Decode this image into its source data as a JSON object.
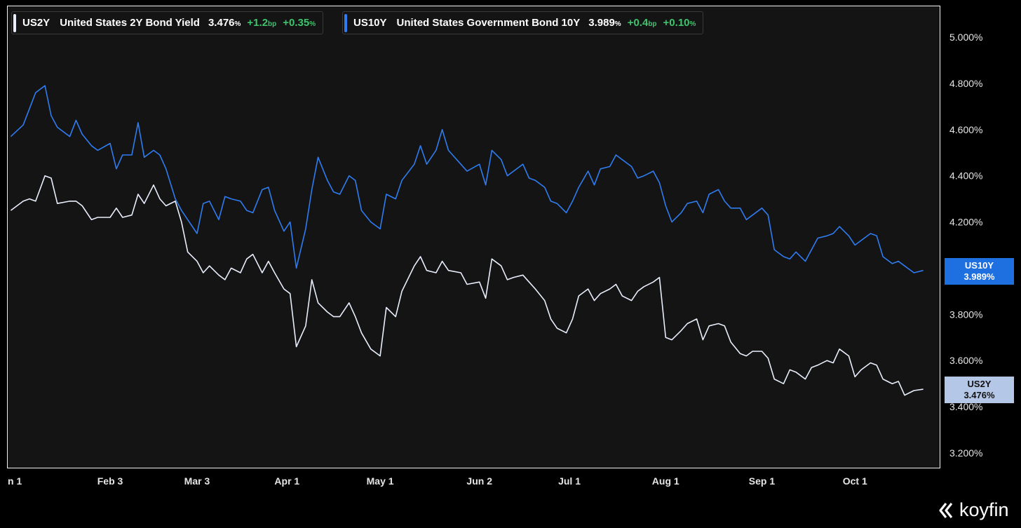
{
  "legend": {
    "us2y": {
      "symbol": "US2Y",
      "name": "United States 2Y Bond Yield",
      "value": "3.476",
      "unit": "%",
      "change_bp": "+1.2",
      "bp_unit": "bp",
      "change_pct": "+0.35",
      "pct_unit": "%"
    },
    "us10y": {
      "symbol": "US10Y",
      "name": "United States Government Bond 10Y",
      "value": "3.989",
      "unit": "%",
      "change_bp": "+0.4",
      "bp_unit": "bp",
      "change_pct": "+0.10",
      "pct_unit": "%"
    }
  },
  "tags": {
    "us10y": {
      "symbol": "US10Y",
      "value": "3.989%"
    },
    "us2y": {
      "symbol": "US2Y",
      "value": "3.476%"
    }
  },
  "brand": "koyfin",
  "colors": {
    "us10y": "#2f7cf0",
    "us2y": "#e8eefc",
    "positive": "#3ec46d",
    "background": "#141414",
    "us10y_tag": "#1e6fe0",
    "us2y_tag": "#b5c7e6"
  },
  "chart_data": {
    "type": "line",
    "ylim": [
      3.1,
      5.1
    ],
    "y_ticks": [
      "5.000%",
      "4.800%",
      "4.600%",
      "4.400%",
      "4.200%",
      "3.800%",
      "3.600%",
      "3.400%",
      "3.200%"
    ],
    "y_tick_values": [
      5.0,
      4.8,
      4.6,
      4.4,
      4.2,
      3.8,
      3.6,
      3.4,
      3.2
    ],
    "x_ticks": [
      "n 1",
      "Feb 3",
      "Mar 3",
      "Apr 1",
      "May 1",
      "Jun 2",
      "Jul 1",
      "Aug 1",
      "Sep 1",
      "Oct 1"
    ],
    "x_tick_dates": [
      "2025-01-01",
      "2025-02-03",
      "2025-03-03",
      "2025-04-01",
      "2025-05-01",
      "2025-06-02",
      "2025-07-01",
      "2025-08-01",
      "2025-09-01",
      "2025-10-01"
    ],
    "x_range": [
      "2025-01-01",
      "2025-10-31"
    ],
    "grid": false,
    "series": [
      {
        "name": "US10Y",
        "color": "#2f7cf0",
        "points": [
          [
            "2025-01-02",
            4.57
          ],
          [
            "2025-01-06",
            4.62
          ],
          [
            "2025-01-08",
            4.69
          ],
          [
            "2025-01-10",
            4.76
          ],
          [
            "2025-01-13",
            4.79
          ],
          [
            "2025-01-15",
            4.66
          ],
          [
            "2025-01-17",
            4.61
          ],
          [
            "2025-01-21",
            4.57
          ],
          [
            "2025-01-23",
            4.64
          ],
          [
            "2025-01-25",
            4.58
          ],
          [
            "2025-01-28",
            4.53
          ],
          [
            "2025-01-30",
            4.51
          ],
          [
            "2025-02-03",
            4.54
          ],
          [
            "2025-02-05",
            4.43
          ],
          [
            "2025-02-07",
            4.49
          ],
          [
            "2025-02-10",
            4.49
          ],
          [
            "2025-02-12",
            4.63
          ],
          [
            "2025-02-14",
            4.48
          ],
          [
            "2025-02-17",
            4.51
          ],
          [
            "2025-02-19",
            4.49
          ],
          [
            "2025-02-21",
            4.43
          ],
          [
            "2025-02-24",
            4.3
          ],
          [
            "2025-02-26",
            4.25
          ],
          [
            "2025-02-28",
            4.21
          ],
          [
            "2025-03-03",
            4.15
          ],
          [
            "2025-03-05",
            4.28
          ],
          [
            "2025-03-07",
            4.29
          ],
          [
            "2025-03-10",
            4.21
          ],
          [
            "2025-03-12",
            4.31
          ],
          [
            "2025-03-14",
            4.3
          ],
          [
            "2025-03-17",
            4.29
          ],
          [
            "2025-03-19",
            4.25
          ],
          [
            "2025-03-21",
            4.24
          ],
          [
            "2025-03-24",
            4.34
          ],
          [
            "2025-03-26",
            4.35
          ],
          [
            "2025-03-28",
            4.25
          ],
          [
            "2025-03-31",
            4.16
          ],
          [
            "2025-04-02",
            4.2
          ],
          [
            "2025-04-04",
            4.0
          ],
          [
            "2025-04-07",
            4.17
          ],
          [
            "2025-04-09",
            4.34
          ],
          [
            "2025-04-11",
            4.48
          ],
          [
            "2025-04-14",
            4.38
          ],
          [
            "2025-04-16",
            4.33
          ],
          [
            "2025-04-18",
            4.32
          ],
          [
            "2025-04-21",
            4.4
          ],
          [
            "2025-04-23",
            4.38
          ],
          [
            "2025-04-25",
            4.25
          ],
          [
            "2025-04-28",
            4.2
          ],
          [
            "2025-05-01",
            4.17
          ],
          [
            "2025-05-03",
            4.32
          ],
          [
            "2025-05-06",
            4.3
          ],
          [
            "2025-05-08",
            4.38
          ],
          [
            "2025-05-12",
            4.45
          ],
          [
            "2025-05-14",
            4.53
          ],
          [
            "2025-05-16",
            4.45
          ],
          [
            "2025-05-19",
            4.51
          ],
          [
            "2025-05-21",
            4.6
          ],
          [
            "2025-05-23",
            4.51
          ],
          [
            "2025-05-27",
            4.45
          ],
          [
            "2025-05-29",
            4.42
          ],
          [
            "2025-06-02",
            4.45
          ],
          [
            "2025-06-04",
            4.36
          ],
          [
            "2025-06-06",
            4.51
          ],
          [
            "2025-06-09",
            4.47
          ],
          [
            "2025-06-11",
            4.4
          ],
          [
            "2025-06-13",
            4.42
          ],
          [
            "2025-06-16",
            4.45
          ],
          [
            "2025-06-18",
            4.39
          ],
          [
            "2025-06-20",
            4.38
          ],
          [
            "2025-06-23",
            4.35
          ],
          [
            "2025-06-25",
            4.29
          ],
          [
            "2025-06-27",
            4.28
          ],
          [
            "2025-06-30",
            4.24
          ],
          [
            "2025-07-02",
            4.29
          ],
          [
            "2025-07-04",
            4.35
          ],
          [
            "2025-07-07",
            4.42
          ],
          [
            "2025-07-09",
            4.36
          ],
          [
            "2025-07-11",
            4.43
          ],
          [
            "2025-07-14",
            4.44
          ],
          [
            "2025-07-16",
            4.49
          ],
          [
            "2025-07-18",
            4.47
          ],
          [
            "2025-07-21",
            4.44
          ],
          [
            "2025-07-23",
            4.39
          ],
          [
            "2025-07-25",
            4.4
          ],
          [
            "2025-07-28",
            4.42
          ],
          [
            "2025-07-30",
            4.37
          ],
          [
            "2025-08-01",
            4.27
          ],
          [
            "2025-08-03",
            4.2
          ],
          [
            "2025-08-06",
            4.24
          ],
          [
            "2025-08-08",
            4.28
          ],
          [
            "2025-08-11",
            4.29
          ],
          [
            "2025-08-13",
            4.24
          ],
          [
            "2025-08-15",
            4.32
          ],
          [
            "2025-08-18",
            4.34
          ],
          [
            "2025-08-20",
            4.29
          ],
          [
            "2025-08-22",
            4.26
          ],
          [
            "2025-08-25",
            4.26
          ],
          [
            "2025-08-27",
            4.21
          ],
          [
            "2025-08-29",
            4.23
          ],
          [
            "2025-09-01",
            4.26
          ],
          [
            "2025-09-03",
            4.23
          ],
          [
            "2025-09-05",
            4.08
          ],
          [
            "2025-09-08",
            4.05
          ],
          [
            "2025-09-10",
            4.04
          ],
          [
            "2025-09-12",
            4.07
          ],
          [
            "2025-09-15",
            4.03
          ],
          [
            "2025-09-17",
            4.08
          ],
          [
            "2025-09-19",
            4.13
          ],
          [
            "2025-09-22",
            4.14
          ],
          [
            "2025-09-24",
            4.15
          ],
          [
            "2025-09-26",
            4.18
          ],
          [
            "2025-09-29",
            4.14
          ],
          [
            "2025-10-01",
            4.1
          ],
          [
            "2025-10-03",
            4.12
          ],
          [
            "2025-10-06",
            4.15
          ],
          [
            "2025-10-08",
            4.14
          ],
          [
            "2025-10-10",
            4.05
          ],
          [
            "2025-10-13",
            4.02
          ],
          [
            "2025-10-15",
            4.03
          ],
          [
            "2025-10-17",
            4.01
          ],
          [
            "2025-10-20",
            3.98
          ],
          [
            "2025-10-23",
            3.99
          ]
        ]
      },
      {
        "name": "US2Y",
        "color": "#e8eefc",
        "points": [
          [
            "2025-01-02",
            4.25
          ],
          [
            "2025-01-06",
            4.29
          ],
          [
            "2025-01-08",
            4.3
          ],
          [
            "2025-01-10",
            4.29
          ],
          [
            "2025-01-13",
            4.4
          ],
          [
            "2025-01-15",
            4.39
          ],
          [
            "2025-01-17",
            4.28
          ],
          [
            "2025-01-21",
            4.29
          ],
          [
            "2025-01-23",
            4.29
          ],
          [
            "2025-01-25",
            4.27
          ],
          [
            "2025-01-28",
            4.21
          ],
          [
            "2025-01-30",
            4.22
          ],
          [
            "2025-02-03",
            4.22
          ],
          [
            "2025-02-05",
            4.26
          ],
          [
            "2025-02-07",
            4.22
          ],
          [
            "2025-02-10",
            4.23
          ],
          [
            "2025-02-12",
            4.32
          ],
          [
            "2025-02-14",
            4.28
          ],
          [
            "2025-02-17",
            4.36
          ],
          [
            "2025-02-19",
            4.3
          ],
          [
            "2025-02-21",
            4.27
          ],
          [
            "2025-02-24",
            4.29
          ],
          [
            "2025-02-26",
            4.2
          ],
          [
            "2025-02-28",
            4.07
          ],
          [
            "2025-03-03",
            4.03
          ],
          [
            "2025-03-05",
            3.98
          ],
          [
            "2025-03-07",
            4.01
          ],
          [
            "2025-03-10",
            3.97
          ],
          [
            "2025-03-12",
            3.95
          ],
          [
            "2025-03-14",
            4.0
          ],
          [
            "2025-03-17",
            3.98
          ],
          [
            "2025-03-19",
            4.04
          ],
          [
            "2025-03-21",
            4.06
          ],
          [
            "2025-03-24",
            3.98
          ],
          [
            "2025-03-26",
            4.03
          ],
          [
            "2025-03-28",
            3.98
          ],
          [
            "2025-03-31",
            3.91
          ],
          [
            "2025-04-02",
            3.89
          ],
          [
            "2025-04-04",
            3.66
          ],
          [
            "2025-04-07",
            3.75
          ],
          [
            "2025-04-09",
            3.95
          ],
          [
            "2025-04-11",
            3.85
          ],
          [
            "2025-04-14",
            3.81
          ],
          [
            "2025-04-16",
            3.79
          ],
          [
            "2025-04-18",
            3.79
          ],
          [
            "2025-04-21",
            3.85
          ],
          [
            "2025-04-23",
            3.79
          ],
          [
            "2025-04-25",
            3.72
          ],
          [
            "2025-04-28",
            3.65
          ],
          [
            "2025-05-01",
            3.62
          ],
          [
            "2025-05-03",
            3.83
          ],
          [
            "2025-05-06",
            3.79
          ],
          [
            "2025-05-08",
            3.9
          ],
          [
            "2025-05-12",
            4.01
          ],
          [
            "2025-05-14",
            4.05
          ],
          [
            "2025-05-16",
            3.99
          ],
          [
            "2025-05-19",
            3.98
          ],
          [
            "2025-05-21",
            4.03
          ],
          [
            "2025-05-23",
            3.99
          ],
          [
            "2025-05-27",
            3.98
          ],
          [
            "2025-05-29",
            3.93
          ],
          [
            "2025-06-02",
            3.94
          ],
          [
            "2025-06-04",
            3.87
          ],
          [
            "2025-06-06",
            4.04
          ],
          [
            "2025-06-09",
            4.01
          ],
          [
            "2025-06-11",
            3.95
          ],
          [
            "2025-06-13",
            3.96
          ],
          [
            "2025-06-16",
            3.97
          ],
          [
            "2025-06-18",
            3.94
          ],
          [
            "2025-06-20",
            3.91
          ],
          [
            "2025-06-23",
            3.86
          ],
          [
            "2025-06-25",
            3.78
          ],
          [
            "2025-06-27",
            3.74
          ],
          [
            "2025-06-30",
            3.72
          ],
          [
            "2025-07-02",
            3.78
          ],
          [
            "2025-07-04",
            3.88
          ],
          [
            "2025-07-07",
            3.91
          ],
          [
            "2025-07-09",
            3.86
          ],
          [
            "2025-07-11",
            3.89
          ],
          [
            "2025-07-14",
            3.91
          ],
          [
            "2025-07-16",
            3.93
          ],
          [
            "2025-07-18",
            3.88
          ],
          [
            "2025-07-21",
            3.86
          ],
          [
            "2025-07-23",
            3.9
          ],
          [
            "2025-07-25",
            3.92
          ],
          [
            "2025-07-28",
            3.94
          ],
          [
            "2025-07-30",
            3.96
          ],
          [
            "2025-08-01",
            3.7
          ],
          [
            "2025-08-03",
            3.69
          ],
          [
            "2025-08-06",
            3.73
          ],
          [
            "2025-08-08",
            3.76
          ],
          [
            "2025-08-11",
            3.78
          ],
          [
            "2025-08-13",
            3.69
          ],
          [
            "2025-08-15",
            3.75
          ],
          [
            "2025-08-18",
            3.76
          ],
          [
            "2025-08-20",
            3.75
          ],
          [
            "2025-08-22",
            3.68
          ],
          [
            "2025-08-25",
            3.63
          ],
          [
            "2025-08-27",
            3.62
          ],
          [
            "2025-08-29",
            3.64
          ],
          [
            "2025-09-01",
            3.64
          ],
          [
            "2025-09-03",
            3.61
          ],
          [
            "2025-09-05",
            3.52
          ],
          [
            "2025-09-08",
            3.5
          ],
          [
            "2025-09-10",
            3.56
          ],
          [
            "2025-09-12",
            3.55
          ],
          [
            "2025-09-15",
            3.52
          ],
          [
            "2025-09-17",
            3.57
          ],
          [
            "2025-09-19",
            3.58
          ],
          [
            "2025-09-22",
            3.6
          ],
          [
            "2025-09-24",
            3.59
          ],
          [
            "2025-09-26",
            3.65
          ],
          [
            "2025-09-29",
            3.62
          ],
          [
            "2025-10-01",
            3.53
          ],
          [
            "2025-10-03",
            3.56
          ],
          [
            "2025-10-06",
            3.59
          ],
          [
            "2025-10-08",
            3.58
          ],
          [
            "2025-10-10",
            3.52
          ],
          [
            "2025-10-13",
            3.5
          ],
          [
            "2025-10-15",
            3.51
          ],
          [
            "2025-10-17",
            3.45
          ],
          [
            "2025-10-20",
            3.47
          ],
          [
            "2025-10-23",
            3.476
          ]
        ]
      }
    ]
  }
}
